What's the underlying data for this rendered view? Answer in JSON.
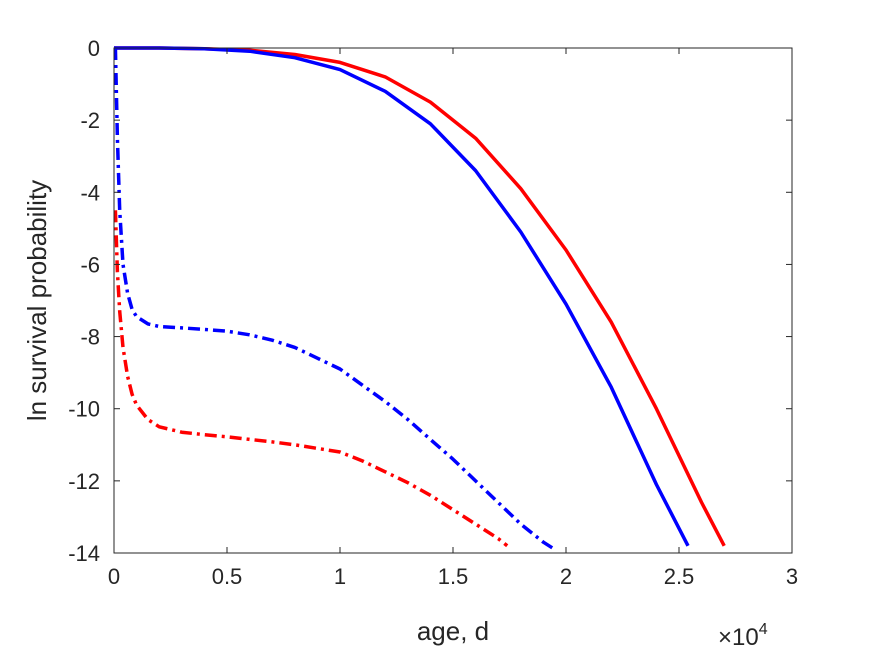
{
  "chart_data": {
    "type": "line",
    "title": "",
    "xlabel": "age, d",
    "ylabel": "ln survival probability",
    "x_exponent_label": "×10",
    "x_exponent_power": "4",
    "xlim": [
      0,
      30000
    ],
    "ylim": [
      -14,
      0
    ],
    "x_ticks": [
      0,
      5000,
      10000,
      15000,
      20000,
      25000,
      30000
    ],
    "x_tick_labels": [
      "0",
      "0.5",
      "1",
      "1.5",
      "2",
      "2.5",
      "3"
    ],
    "y_ticks": [
      0,
      -2,
      -4,
      -6,
      -8,
      -10,
      -12,
      -14
    ],
    "y_tick_labels": [
      "0",
      "-2",
      "-4",
      "-6",
      "-8",
      "-10",
      "-12",
      "-14"
    ],
    "grid": false,
    "series": [
      {
        "color": "#ff0000",
        "style": "solid",
        "x": [
          0,
          2000,
          4000,
          6000,
          8000,
          10000,
          12000,
          14000,
          16000,
          18000,
          20000,
          22000,
          24000,
          26000,
          27000
        ],
        "y": [
          0,
          0,
          -0.02,
          -0.06,
          -0.18,
          -0.4,
          -0.8,
          -1.5,
          -2.5,
          -3.9,
          -5.6,
          -7.6,
          -10.0,
          -12.6,
          -13.8
        ]
      },
      {
        "color": "#0000ff",
        "style": "solid",
        "x": [
          0,
          2000,
          4000,
          6000,
          8000,
          10000,
          12000,
          14000,
          16000,
          18000,
          20000,
          22000,
          24000,
          25400
        ],
        "y": [
          0,
          0,
          -0.02,
          -0.09,
          -0.27,
          -0.6,
          -1.2,
          -2.1,
          -3.4,
          -5.1,
          -7.1,
          -9.4,
          -12.1,
          -13.8
        ]
      },
      {
        "color": "#0000ff",
        "style": "dashdot",
        "x": [
          60,
          150,
          250,
          400,
          600,
          800,
          1000,
          1500,
          2000,
          3000,
          4000,
          5000,
          6000,
          7000,
          8000,
          9000,
          10000,
          11000,
          12000,
          13000,
          14000,
          15000,
          16000,
          17000,
          18000,
          19000,
          19500
        ],
        "y": [
          0,
          -2.5,
          -4.5,
          -6.0,
          -6.8,
          -7.25,
          -7.45,
          -7.65,
          -7.72,
          -7.76,
          -7.8,
          -7.85,
          -7.95,
          -8.1,
          -8.3,
          -8.6,
          -8.9,
          -9.35,
          -9.8,
          -10.3,
          -10.85,
          -11.4,
          -12.0,
          -12.6,
          -13.2,
          -13.7,
          -13.9
        ]
      },
      {
        "color": "#ff0000",
        "style": "dashdot",
        "x": [
          60,
          150,
          250,
          400,
          600,
          800,
          1000,
          1500,
          2000,
          3000,
          4000,
          5000,
          6000,
          7000,
          8000,
          9000,
          10000,
          11000,
          12000,
          13000,
          14000,
          15000,
          16000,
          17000,
          17400
        ],
        "y": [
          -4.5,
          -6.2,
          -7.3,
          -8.3,
          -9.1,
          -9.6,
          -9.9,
          -10.3,
          -10.5,
          -10.65,
          -10.72,
          -10.78,
          -10.85,
          -10.92,
          -11.0,
          -11.1,
          -11.2,
          -11.45,
          -11.75,
          -12.05,
          -12.4,
          -12.8,
          -13.2,
          -13.6,
          -13.8
        ]
      }
    ]
  }
}
